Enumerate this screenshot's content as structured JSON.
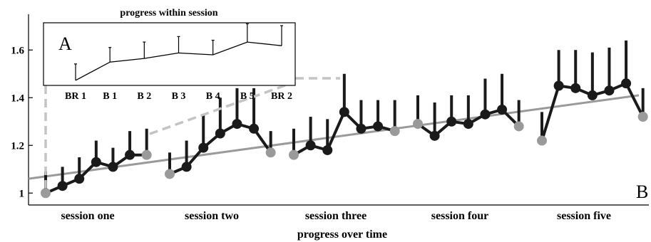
{
  "chart_data": [
    {
      "panel": "B",
      "type": "line",
      "xlabel": "progress over time",
      "ylabel": "",
      "ylim": [
        0.95,
        1.75
      ],
      "yticks": [
        1,
        1.2,
        1.4,
        1.6
      ],
      "ytick_labels": [
        "1",
        "1.2",
        "1.4",
        "1.6"
      ],
      "categories": [
        "session one",
        "session two",
        "session three",
        "session four",
        "session five"
      ],
      "sessions": [
        {
          "name": "session one",
          "values": [
            1.0,
            1.03,
            1.06,
            1.13,
            1.11,
            1.16,
            1.16
          ],
          "error": [
            0.09,
            0.08,
            0.09,
            0.09,
            0.08,
            0.1,
            0.11
          ]
        },
        {
          "name": "session two",
          "values": [
            1.08,
            1.11,
            1.19,
            1.25,
            1.29,
            1.27,
            1.17
          ],
          "error": [
            0.09,
            0.11,
            0.14,
            0.15,
            0.15,
            0.17,
            0.09
          ]
        },
        {
          "name": "session three",
          "values": [
            1.16,
            1.2,
            1.18,
            1.34,
            1.27,
            1.28,
            1.26
          ],
          "error": [
            0.11,
            0.12,
            0.13,
            0.16,
            0.12,
            0.11,
            0.13
          ]
        },
        {
          "name": "session four",
          "values": [
            1.29,
            1.24,
            1.3,
            1.29,
            1.33,
            1.35,
            1.28
          ],
          "error": [
            0.12,
            0.14,
            0.11,
            0.12,
            0.15,
            0.15,
            0.11
          ]
        },
        {
          "name": "session five",
          "values": [
            1.22,
            1.45,
            1.44,
            1.41,
            1.43,
            1.46,
            1.32
          ],
          "error": [
            0.12,
            0.15,
            0.16,
            0.18,
            0.18,
            0.18,
            0.12
          ]
        }
      ],
      "trend": {
        "start": 1.06,
        "end": 1.41
      },
      "colors": {
        "main_line": "#1a1a1a",
        "baseline_marker": "#9a9a9a",
        "trend": "#9a9a9a",
        "connector": "#c4c4c4"
      }
    },
    {
      "panel": "A",
      "type": "line",
      "title": "progress within session",
      "categories": [
        "BR 1",
        "B 1",
        "B 2",
        "B 3",
        "B 4",
        "B 5",
        "BR 2"
      ],
      "values": [
        1.0,
        1.1,
        1.12,
        1.15,
        1.14,
        1.21,
        1.19
      ],
      "error": [
        0.09,
        0.08,
        0.09,
        0.09,
        0.08,
        0.1,
        0.11
      ],
      "ylim": [
        0.98,
        1.3
      ]
    }
  ]
}
